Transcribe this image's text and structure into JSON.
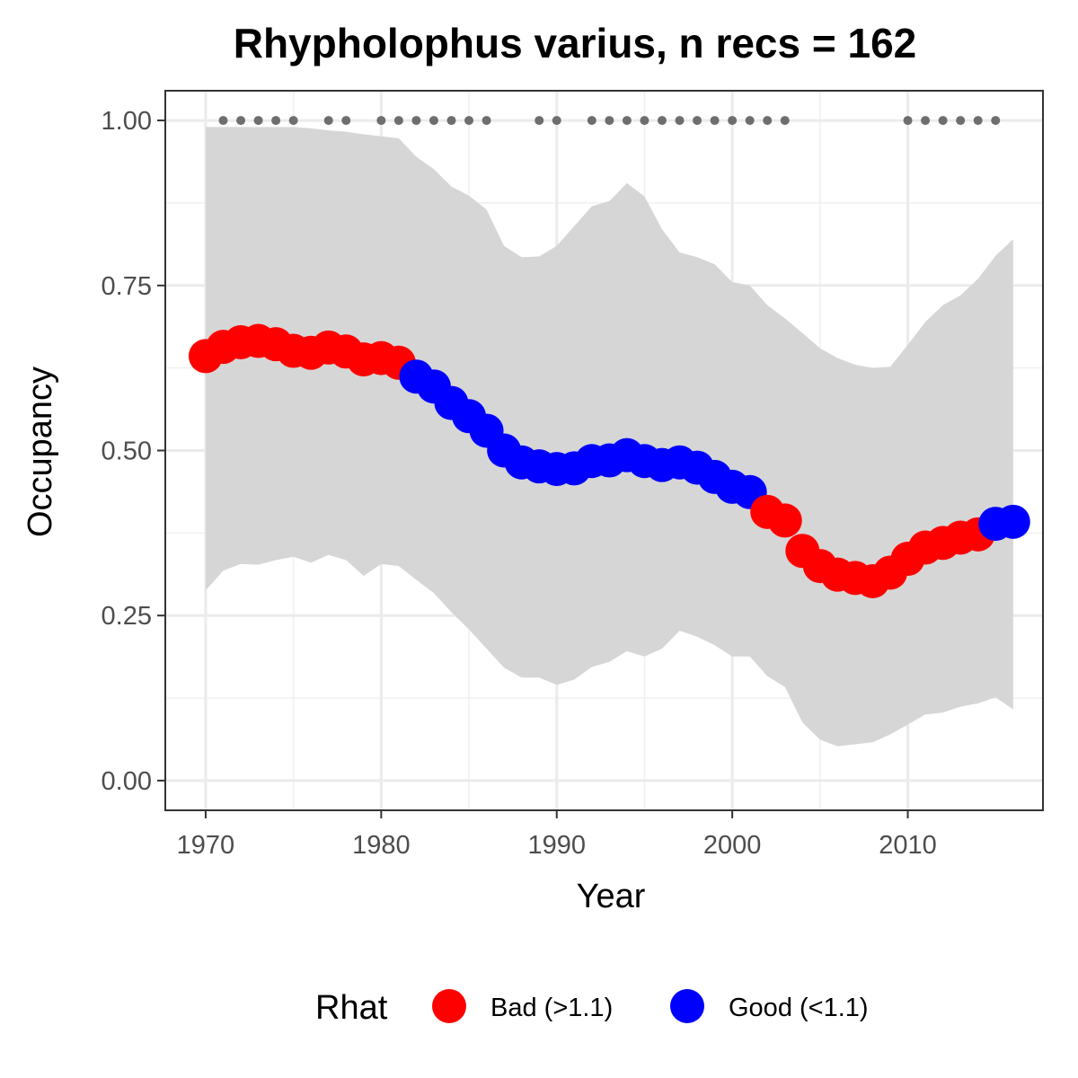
{
  "chart_data": {
    "type": "line",
    "title": "Rhypholophus varius, n recs = 162",
    "xlabel": "Year",
    "ylabel": "Occupancy",
    "xlim": [
      1967.7,
      2017.7
    ],
    "ylim": [
      -0.045,
      1.045
    ],
    "x_ticks": [
      1970,
      1980,
      1990,
      2000,
      2010
    ],
    "x_tick_labels": [
      "1970",
      "1980",
      "1990",
      "2000",
      "2010"
    ],
    "y_ticks": [
      0,
      0.25,
      0.5,
      0.75,
      1.0
    ],
    "y_tick_labels": [
      "0.00",
      "0.25",
      "0.50",
      "0.75",
      "1.00"
    ],
    "grid": true,
    "legend": {
      "title": "Rhat",
      "position": "bottom",
      "entries": [
        {
          "label": "Bad (>1.1)",
          "color": "#ff0000"
        },
        {
          "label": "Good (<1.1)",
          "color": "#0000ff"
        }
      ]
    },
    "colors": {
      "bad": "#ff0000",
      "good": "#0000ff",
      "ribbon": "#d6d6d6",
      "record_dots": "#6e6e6e"
    },
    "years": [
      1970,
      1971,
      1972,
      1973,
      1974,
      1975,
      1976,
      1977,
      1978,
      1979,
      1980,
      1981,
      1982,
      1983,
      1984,
      1985,
      1986,
      1987,
      1988,
      1989,
      1990,
      1991,
      1992,
      1993,
      1994,
      1995,
      1996,
      1997,
      1998,
      1999,
      2000,
      2001,
      2002,
      2003,
      2004,
      2005,
      2006,
      2007,
      2008,
      2009,
      2010,
      2011,
      2012,
      2013,
      2014,
      2015,
      2016
    ],
    "occupancy": [
      0.643,
      0.657,
      0.664,
      0.666,
      0.661,
      0.651,
      0.648,
      0.656,
      0.65,
      0.638,
      0.64,
      0.633,
      0.612,
      0.597,
      0.572,
      0.552,
      0.53,
      0.5,
      0.482,
      0.476,
      0.472,
      0.473,
      0.484,
      0.485,
      0.493,
      0.484,
      0.478,
      0.482,
      0.474,
      0.46,
      0.445,
      0.437,
      0.407,
      0.394,
      0.348,
      0.325,
      0.312,
      0.307,
      0.302,
      0.315,
      0.336,
      0.353,
      0.36,
      0.368,
      0.373,
      0.389,
      0.392
    ],
    "rhat": [
      "Bad",
      "Bad",
      "Bad",
      "Bad",
      "Bad",
      "Bad",
      "Bad",
      "Bad",
      "Bad",
      "Bad",
      "Bad",
      "Bad",
      "Good",
      "Good",
      "Good",
      "Good",
      "Good",
      "Good",
      "Good",
      "Good",
      "Good",
      "Good",
      "Good",
      "Good",
      "Good",
      "Good",
      "Good",
      "Good",
      "Good",
      "Good",
      "Good",
      "Good",
      "Bad",
      "Bad",
      "Bad",
      "Bad",
      "Bad",
      "Bad",
      "Bad",
      "Bad",
      "Bad",
      "Bad",
      "Bad",
      "Bad",
      "Bad",
      "Good",
      "Good"
    ],
    "upper": [
      0.99,
      0.99,
      0.99,
      0.99,
      0.99,
      0.99,
      0.988,
      0.985,
      0.983,
      0.979,
      0.976,
      0.973,
      0.945,
      0.926,
      0.9,
      0.886,
      0.865,
      0.81,
      0.793,
      0.794,
      0.81,
      0.84,
      0.87,
      0.878,
      0.905,
      0.885,
      0.835,
      0.8,
      0.793,
      0.782,
      0.755,
      0.75,
      0.72,
      0.7,
      0.678,
      0.655,
      0.64,
      0.63,
      0.625,
      0.627,
      0.66,
      0.695,
      0.72,
      0.735,
      0.76,
      0.795,
      0.82
    ],
    "lower": [
      0.288,
      0.318,
      0.328,
      0.327,
      0.334,
      0.339,
      0.33,
      0.342,
      0.334,
      0.31,
      0.328,
      0.325,
      0.304,
      0.284,
      0.255,
      0.229,
      0.2,
      0.171,
      0.156,
      0.156,
      0.145,
      0.153,
      0.172,
      0.18,
      0.196,
      0.188,
      0.2,
      0.227,
      0.218,
      0.205,
      0.188,
      0.188,
      0.158,
      0.142,
      0.088,
      0.062,
      0.052,
      0.055,
      0.058,
      0.07,
      0.085,
      0.1,
      0.103,
      0.112,
      0.117,
      0.126,
      0.108
    ],
    "record_years": [
      1971,
      1972,
      1973,
      1974,
      1975,
      1977,
      1978,
      1980,
      1981,
      1982,
      1983,
      1984,
      1985,
      1986,
      1989,
      1990,
      1992,
      1993,
      1994,
      1995,
      1996,
      1997,
      1998,
      1999,
      2000,
      2001,
      2002,
      2003,
      2010,
      2011,
      2012,
      2013,
      2014,
      2015
    ],
    "record_value": 1.0
  }
}
